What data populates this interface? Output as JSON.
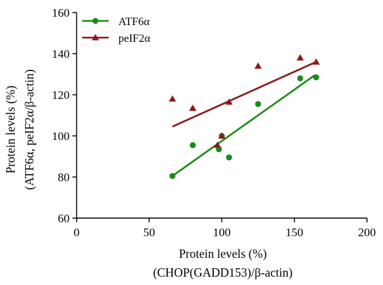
{
  "chart_data": {
    "type": "scatter",
    "xlabel_lines": [
      "Protein levels (%)",
      "(CHOP(GADD153)/β-actin)"
    ],
    "ylabel_lines": [
      "Protein levels (%)",
      "(ATF6α, peIF2α/β-actin)"
    ],
    "xlim": [
      0,
      200
    ],
    "ylim": [
      60,
      160
    ],
    "x_ticks": [
      0,
      50,
      100,
      150,
      200
    ],
    "y_ticks": [
      60,
      80,
      100,
      120,
      140,
      160
    ],
    "grid": false,
    "legend_position": "top-left",
    "series": [
      {
        "name": "ATF6α",
        "marker": "circle",
        "color": "#1a8a1a",
        "points": [
          {
            "x": 66,
            "y": 80.5
          },
          {
            "x": 80,
            "y": 95.5
          },
          {
            "x": 98,
            "y": 93.5
          },
          {
            "x": 100,
            "y": 100
          },
          {
            "x": 105,
            "y": 89.5
          },
          {
            "x": 125,
            "y": 115.5
          },
          {
            "x": 154,
            "y": 128
          },
          {
            "x": 165,
            "y": 128.5
          }
        ],
        "trend": {
          "x": [
            66,
            164
          ],
          "y": [
            80.5,
            129.5
          ]
        }
      },
      {
        "name": "peIF2α",
        "marker": "triangle",
        "color": "#8b1a1a",
        "points": [
          {
            "x": 66,
            "y": 118
          },
          {
            "x": 80,
            "y": 113.5
          },
          {
            "x": 97,
            "y": 95.5
          },
          {
            "x": 100,
            "y": 100
          },
          {
            "x": 105,
            "y": 116.5
          },
          {
            "x": 125,
            "y": 134
          },
          {
            "x": 154,
            "y": 138
          },
          {
            "x": 165,
            "y": 136
          }
        ],
        "trend": {
          "x": [
            66,
            165
          ],
          "y": [
            104.5,
            136
          ]
        }
      }
    ]
  }
}
